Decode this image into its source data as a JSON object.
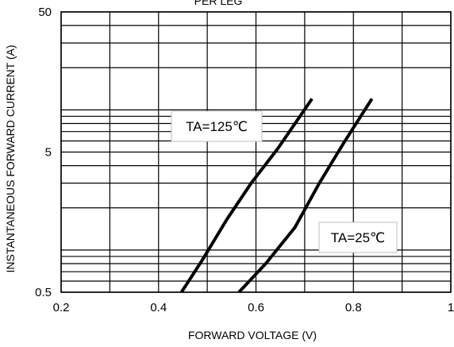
{
  "chart_data": {
    "type": "line",
    "title": "PER LEG",
    "xlabel": "FORWARD VOLTAGE (V)",
    "ylabel": "INSTANTANEOUS FORWARD CURRENT (A)",
    "xlim": [
      0.2,
      1.0
    ],
    "ylim": [
      0.5,
      50
    ],
    "yscale": "log",
    "grid": true,
    "x_ticks": [
      "0.2",
      "0.4",
      "0.6",
      "0.8",
      "1"
    ],
    "y_ticks": [
      "0.5",
      "5",
      "50"
    ],
    "series": [
      {
        "name": "TA=125℃",
        "x": [
          0.447,
          0.49,
          0.54,
          0.59,
          0.645,
          0.715
        ],
        "y": [
          0.5,
          0.85,
          1.65,
          3.0,
          5.3,
          12.0
        ]
      },
      {
        "name": "TA=25℃",
        "x": [
          0.565,
          0.62,
          0.68,
          0.73,
          0.78,
          0.838
        ],
        "y": [
          0.5,
          0.8,
          1.45,
          3.0,
          5.8,
          12.0
        ]
      }
    ],
    "annotations": [
      {
        "text": "TA=125℃",
        "series": 0
      },
      {
        "text": "TA=25℃",
        "series": 1
      }
    ]
  }
}
